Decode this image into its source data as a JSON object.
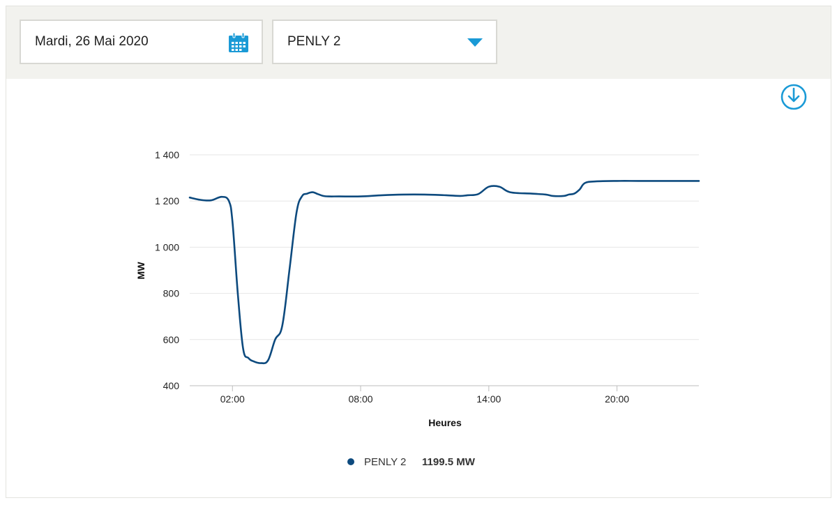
{
  "toolbar": {
    "date_value": "Mardi, 26 Mai 2020",
    "date_icon": "calendar-icon",
    "unit_value": "PENLY 2",
    "unit_icon": "caret-down-icon",
    "download_icon": "download-icon"
  },
  "colors": {
    "accent": "#1a9ad6",
    "series": "#0d4a7e",
    "grid": "#e6e6e6",
    "toolbar_bg": "#f2f2ee"
  },
  "chart_data": {
    "type": "line",
    "title": "",
    "xlabel": "Heures",
    "ylabel": "MW",
    "xlim": [
      "00:00",
      "23:50"
    ],
    "ylim": [
      400,
      1400
    ],
    "y_ticks": [
      "400",
      "600",
      "800",
      "1 000",
      "1 200",
      "1 400"
    ],
    "y_tick_values": [
      400,
      600,
      800,
      1000,
      1200,
      1400
    ],
    "x_ticks": [
      "02:00",
      "08:00",
      "14:00",
      "20:00"
    ],
    "grid": true,
    "legend_position": "bottom",
    "series": [
      {
        "name": "PENLY 2",
        "legend_value": "1199.5 MW",
        "color": "#0d4a7e",
        "x": [
          "00:00",
          "00:30",
          "01:00",
          "01:30",
          "01:50",
          "02:00",
          "02:15",
          "02:30",
          "02:45",
          "03:00",
          "03:20",
          "03:40",
          "04:00",
          "04:20",
          "04:40",
          "05:00",
          "05:15",
          "05:30",
          "05:45",
          "06:00",
          "06:15",
          "06:30",
          "07:00",
          "08:00",
          "09:00",
          "10:00",
          "11:00",
          "12:00",
          "12:40",
          "13:00",
          "13:30",
          "14:00",
          "14:30",
          "15:00",
          "16:00",
          "16:40",
          "17:00",
          "17:30",
          "17:45",
          "18:00",
          "18:15",
          "18:30",
          "19:00",
          "20:00",
          "21:00",
          "22:00",
          "23:00",
          "23:50"
        ],
        "y": [
          1215,
          1205,
          1203,
          1218,
          1200,
          1110,
          800,
          560,
          520,
          505,
          498,
          510,
          600,
          660,
          900,
          1150,
          1220,
          1232,
          1238,
          1230,
          1222,
          1220,
          1220,
          1220,
          1225,
          1228,
          1228,
          1225,
          1222,
          1225,
          1230,
          1262,
          1262,
          1238,
          1232,
          1228,
          1222,
          1222,
          1228,
          1232,
          1250,
          1278,
          1285,
          1287,
          1287,
          1287,
          1287,
          1287
        ]
      }
    ]
  }
}
